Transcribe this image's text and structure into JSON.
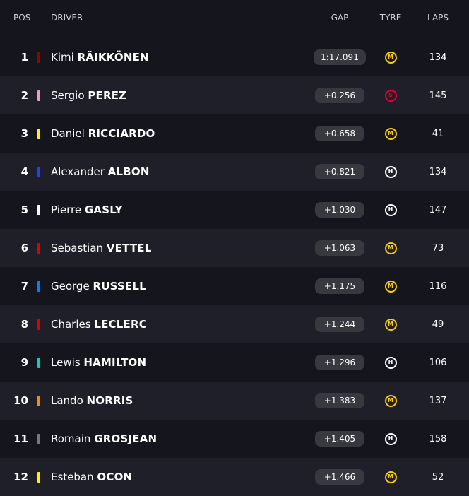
{
  "header": {
    "pos": "POS",
    "driver": "DRIVER",
    "gap": "GAP",
    "tyre": "TYRE",
    "laps": "LAPS"
  },
  "rows": [
    {
      "pos": "1",
      "first": "Kimi",
      "last": "RÄIKKÖNEN",
      "gap": "1:17.091",
      "tyre": "M",
      "laps": "134",
      "team_color": "#960000"
    },
    {
      "pos": "2",
      "first": "Sergio",
      "last": "PEREZ",
      "gap": "+0.256",
      "tyre": "S",
      "laps": "145",
      "team_color": "#f596c8"
    },
    {
      "pos": "3",
      "first": "Daniel",
      "last": "RICCIARDO",
      "gap": "+0.658",
      "tyre": "M",
      "laps": "41",
      "team_color": "#fff500"
    },
    {
      "pos": "4",
      "first": "Alexander",
      "last": "ALBON",
      "gap": "+0.821",
      "tyre": "H",
      "laps": "134",
      "team_color": "#1e41ff"
    },
    {
      "pos": "5",
      "first": "Pierre",
      "last": "GASLY",
      "gap": "+1.030",
      "tyre": "H",
      "laps": "147",
      "team_color": "#ffffff"
    },
    {
      "pos": "6",
      "first": "Sebastian",
      "last": "VETTEL",
      "gap": "+1.063",
      "tyre": "M",
      "laps": "73",
      "team_color": "#dc0000"
    },
    {
      "pos": "7",
      "first": "George",
      "last": "RUSSELL",
      "gap": "+1.175",
      "tyre": "M",
      "laps": "116",
      "team_color": "#0082fa"
    },
    {
      "pos": "8",
      "first": "Charles",
      "last": "LECLERC",
      "gap": "+1.244",
      "tyre": "M",
      "laps": "49",
      "team_color": "#dc0000"
    },
    {
      "pos": "9",
      "first": "Lewis",
      "last": "HAMILTON",
      "gap": "+1.296",
      "tyre": "H",
      "laps": "106",
      "team_color": "#00d2be"
    },
    {
      "pos": "10",
      "first": "Lando",
      "last": "NORRIS",
      "gap": "+1.383",
      "tyre": "M",
      "laps": "137",
      "team_color": "#ff8700"
    },
    {
      "pos": "11",
      "first": "Romain",
      "last": "GROSJEAN",
      "gap": "+1.405",
      "tyre": "H",
      "laps": "158",
      "team_color": "#787878"
    },
    {
      "pos": "12",
      "first": "Esteban",
      "last": "OCON",
      "gap": "+1.466",
      "tyre": "M",
      "laps": "52",
      "team_color": "#fff500"
    }
  ]
}
